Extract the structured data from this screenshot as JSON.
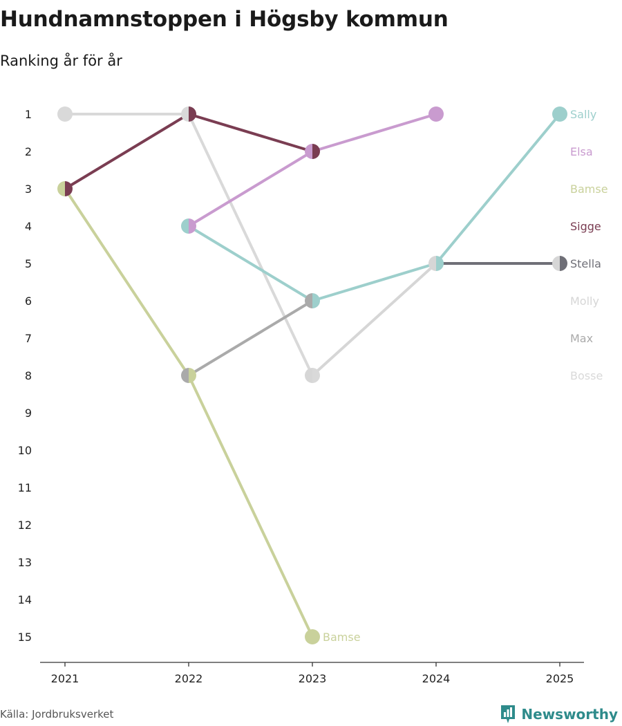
{
  "header": {
    "title": "Hundnamnstoppen i Högsby kommun",
    "subtitle": "Ranking år för år"
  },
  "footer": {
    "source": "Källa: Jordbruksverket",
    "brand": "Newsworthy",
    "brand_icon": "newsworthy-logo-icon",
    "brand_color": "#2e8b8b"
  },
  "chart_data": {
    "type": "line",
    "title": "Hundnamnstoppen i Högsby kommun",
    "subtitle": "Ranking år för år",
    "xlabel": "",
    "ylabel": "",
    "x": [
      "2021",
      "2022",
      "2023",
      "2024",
      "2025"
    ],
    "y_ticks": [
      "1",
      "2",
      "3",
      "4",
      "5",
      "6",
      "7",
      "8",
      "9",
      "10",
      "11",
      "12",
      "13",
      "14",
      "15"
    ],
    "ylim": [
      1,
      15
    ],
    "y_inverted": true,
    "grid": false,
    "legend": "right",
    "series": [
      {
        "name": "Sally",
        "color": "#9dcfcc",
        "values": [
          null,
          4,
          6,
          5,
          1
        ]
      },
      {
        "name": "Elsa",
        "color": "#c99bcf",
        "values": [
          null,
          4,
          2,
          1,
          null
        ]
      },
      {
        "name": "Bamse",
        "color": "#c9d19b",
        "values": [
          3,
          8,
          15,
          null,
          null
        ]
      },
      {
        "name": "Sigge",
        "color": "#7a3d52",
        "values": [
          3,
          1,
          2,
          null,
          null
        ]
      },
      {
        "name": "Stella",
        "color": "#6f6f77",
        "values": [
          null,
          null,
          null,
          5,
          5
        ]
      },
      {
        "name": "Molly",
        "color": "#d6d6d6",
        "values": [
          null,
          null,
          8,
          5,
          5
        ]
      },
      {
        "name": "Max",
        "color": "#aaaaaa",
        "values": [
          null,
          8,
          6,
          null,
          null
        ]
      },
      {
        "name": "Bosse",
        "color": "#d9d9d9",
        "values": [
          1,
          1,
          8,
          null,
          null
        ]
      }
    ],
    "annotations": [
      {
        "text": "Bamse",
        "series": "Bamse",
        "x": "2023",
        "y": 15
      }
    ]
  }
}
